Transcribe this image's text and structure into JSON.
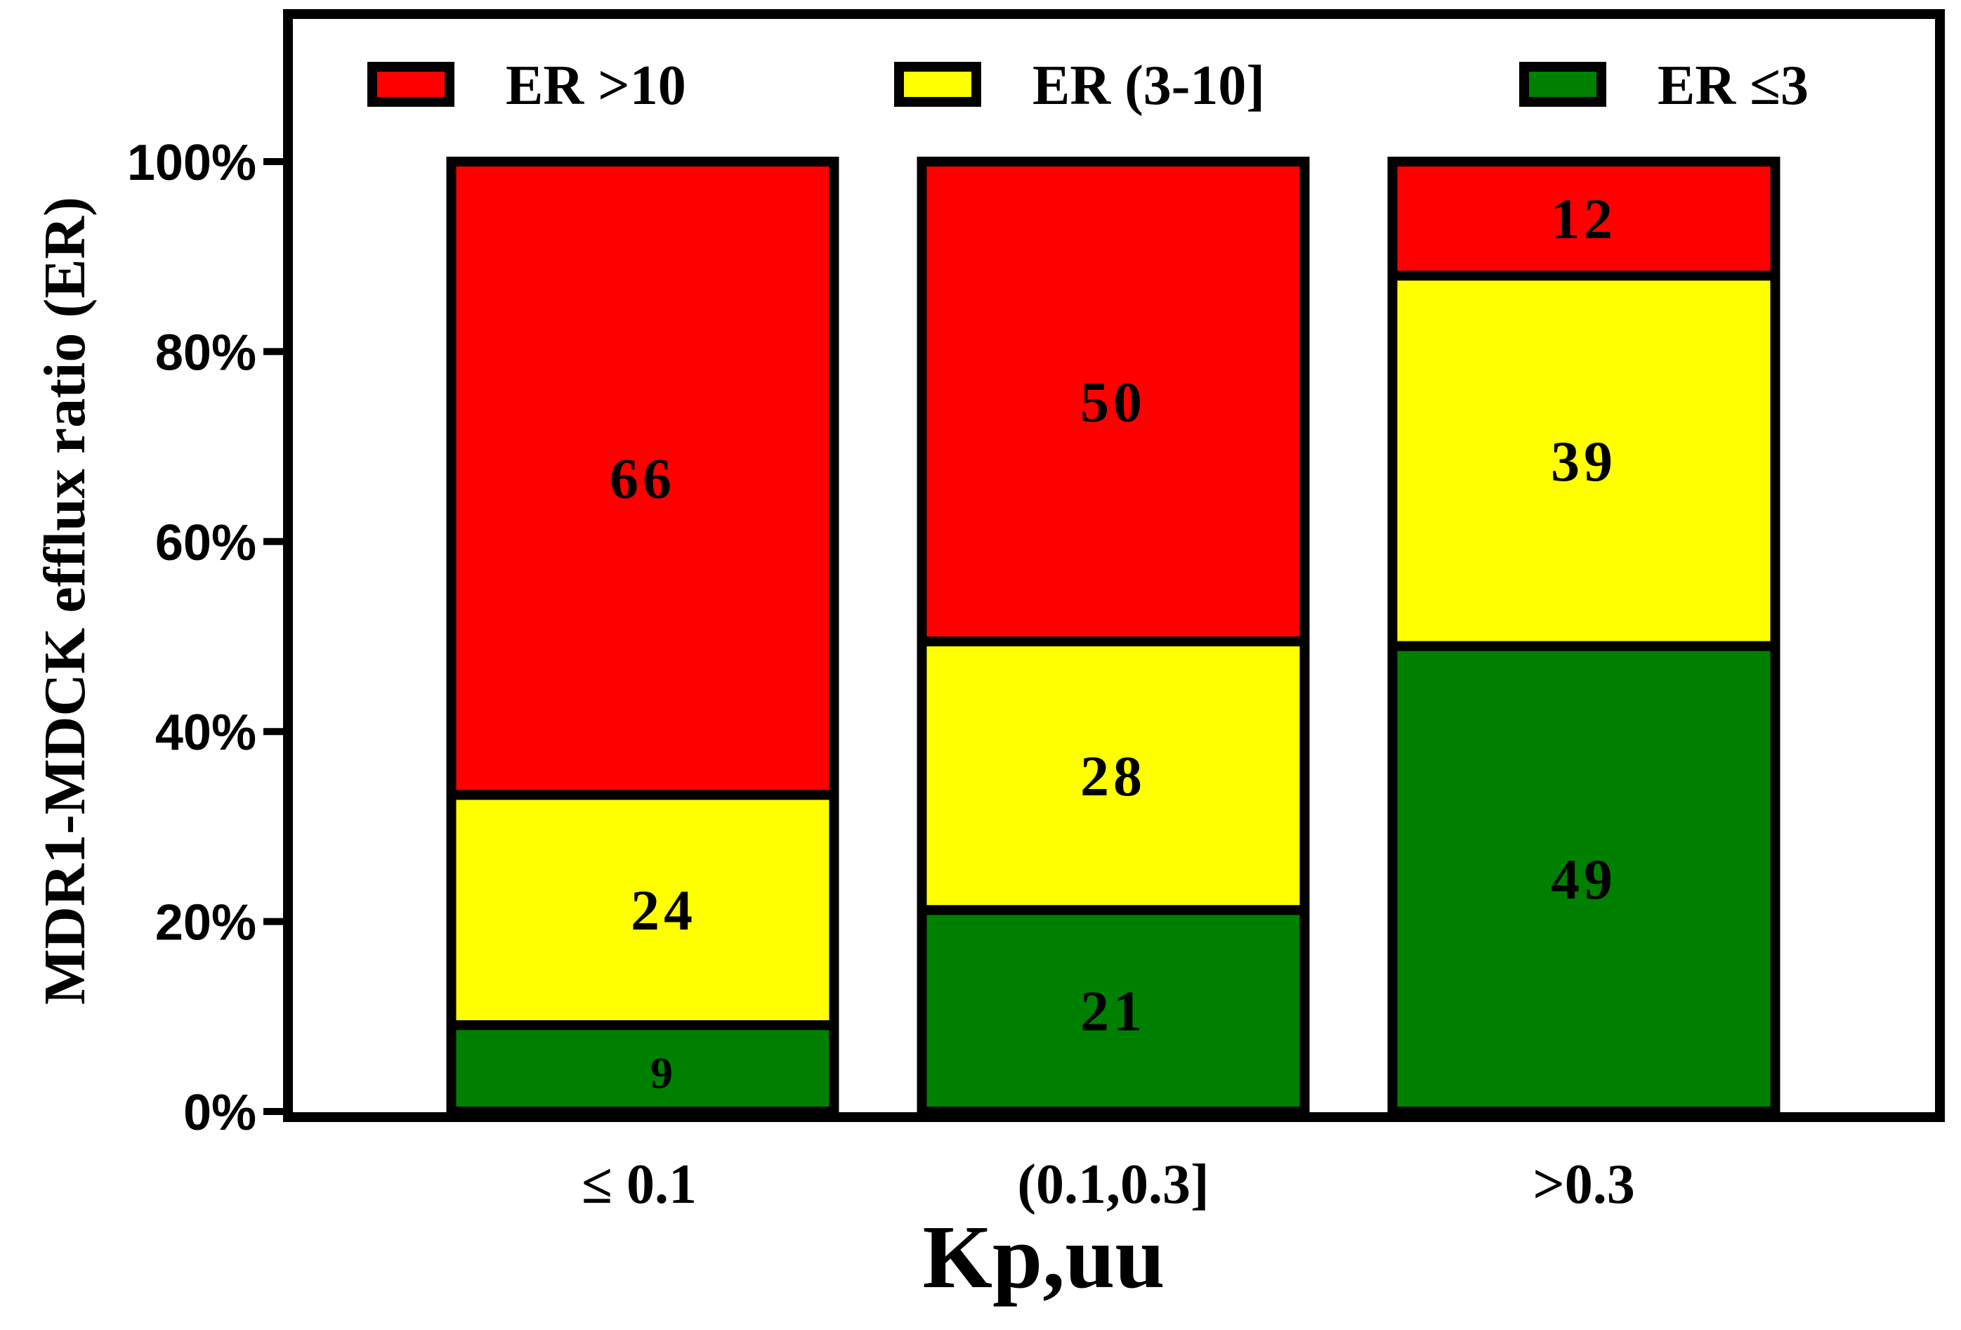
{
  "chart_data": {
    "type": "bar",
    "stacked": true,
    "normalized_percent": true,
    "categories": [
      "≤ 0.1",
      "(0.1,0.3]",
      ">0.3"
    ],
    "series": [
      {
        "name": "ER ≤3",
        "color": "#008000",
        "values": [
          9,
          21,
          49
        ],
        "labels": [
          "9",
          "21",
          "49"
        ]
      },
      {
        "name": "ER (3-10]",
        "color": "#ffff00",
        "values": [
          24,
          28,
          39
        ],
        "labels": [
          "24",
          "28",
          "39"
        ]
      },
      {
        "name": "ER >10",
        "color": "#ff0000",
        "values": [
          66,
          50,
          12
        ],
        "labels": [
          "66",
          "50",
          "12"
        ]
      }
    ],
    "legend_order": [
      "ER >10",
      "ER (3-10]",
      "ER ≤3"
    ],
    "xlabel": "Kp,uu",
    "ylabel": "MDR1-MDCK efflux ratio (ER)",
    "ylim": [
      0,
      100
    ],
    "yticks": [
      "0%",
      "20%",
      "40%",
      "60%",
      "80%",
      "100%"
    ],
    "ytick_values": [
      0,
      20,
      40,
      60,
      80,
      100
    ],
    "legend_position": "top",
    "grid": false
  }
}
